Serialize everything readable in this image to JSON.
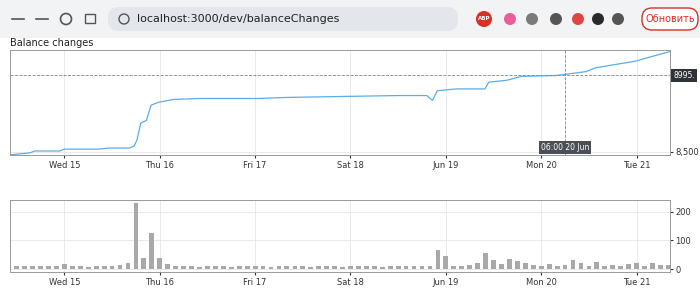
{
  "browser": {
    "url": "localhost:3000/dev/balanceChanges",
    "button": "Обновить",
    "extension_text": "ABP"
  },
  "chart_data": [
    {
      "type": "line",
      "title": "Balance changes",
      "x": [
        14.43,
        14.64,
        14.69,
        14.95,
        15.0,
        15.36,
        15.47,
        15.68,
        15.73,
        15.76,
        15.8,
        15.86,
        15.91,
        15.99,
        16.15,
        16.41,
        17.03,
        17.34,
        18.49,
        18.8,
        18.86,
        18.91,
        19.11,
        19.41,
        19.45,
        19.64,
        19.79,
        20.16,
        20.47,
        20.57,
        20.99,
        21.09,
        21.35
      ],
      "values": [
        8481,
        8494,
        8506,
        8506,
        8518,
        8518,
        8525,
        8525,
        8537,
        8574,
        8686,
        8704,
        8803,
        8822,
        8840,
        8846,
        8846,
        8853,
        8865,
        8865,
        8834,
        8896,
        8908,
        8908,
        8952,
        8964,
        8989,
        8995,
        9020,
        9045,
        9088,
        9106,
        9150
      ],
      "color": "#5aaee8",
      "xlim": [
        14.43,
        21.35
      ],
      "xticks": [
        {
          "value": 15,
          "label": "Wed 15"
        },
        {
          "value": 16,
          "label": "Thu 16"
        },
        {
          "value": 17,
          "label": "Fri 17"
        },
        {
          "value": 18,
          "label": "Sat 18"
        },
        {
          "value": 19,
          "label": "Jun 19"
        },
        {
          "value": 20,
          "label": "Mon 20"
        },
        {
          "value": 21,
          "label": "Tue 21"
        }
      ],
      "ylim": [
        8480,
        9160
      ],
      "yticks": [
        {
          "value": 8500,
          "label": "8,500"
        }
      ],
      "grid": true,
      "annotations": [
        {
          "text": "06:00 20 Jun",
          "x": 20.25
        },
        {
          "text": "8995.",
          "y": 8995
        }
      ]
    },
    {
      "type": "bar",
      "x": [
        14.5,
        14.583,
        14.667,
        14.75,
        14.833,
        14.917,
        15.0,
        15.083,
        15.167,
        15.25,
        15.333,
        15.417,
        15.5,
        15.583,
        15.667,
        15.75,
        15.833,
        15.917,
        16.0,
        16.083,
        16.167,
        16.25,
        16.333,
        16.417,
        16.5,
        16.583,
        16.667,
        16.75,
        16.833,
        16.917,
        17.0,
        17.083,
        17.167,
        17.25,
        17.333,
        17.417,
        17.5,
        17.583,
        17.667,
        17.75,
        17.833,
        17.917,
        18.0,
        18.083,
        18.167,
        18.25,
        18.333,
        18.417,
        18.5,
        18.583,
        18.667,
        18.75,
        18.833,
        18.917,
        19.0,
        19.083,
        19.167,
        19.25,
        19.333,
        19.417,
        19.5,
        19.583,
        19.667,
        19.75,
        19.833,
        19.917,
        20.0,
        20.083,
        20.167,
        20.25,
        20.333,
        20.417,
        20.5,
        20.583,
        20.667,
        20.75,
        20.833,
        20.917,
        21.0,
        21.083,
        21.167,
        21.25,
        21.333
      ],
      "values": [
        10,
        12,
        11,
        12,
        10,
        11,
        18,
        10,
        11,
        9,
        12,
        10,
        11,
        14,
        20,
        230,
        40,
        125,
        40,
        18,
        12,
        10,
        11,
        9,
        10,
        10,
        11,
        9,
        10,
        12,
        10,
        11,
        9,
        10,
        12,
        10,
        11,
        9,
        10,
        10,
        11,
        9,
        10,
        11,
        12,
        10,
        9,
        10,
        11,
        10,
        12,
        10,
        10,
        65,
        45,
        12,
        11,
        15,
        20,
        55,
        30,
        18,
        35,
        28,
        20,
        15,
        12,
        18,
        11,
        14,
        30,
        22,
        12,
        25,
        10,
        14,
        12,
        18,
        22,
        12,
        20,
        14,
        15
      ],
      "color": "#a8a8a8",
      "xlim": [
        14.43,
        21.35
      ],
      "xticks": [
        {
          "value": 15,
          "label": "Wed 15"
        },
        {
          "value": 16,
          "label": "Thu 16"
        },
        {
          "value": 17,
          "label": "Fri 17"
        },
        {
          "value": 18,
          "label": "Sat 18"
        },
        {
          "value": 19,
          "label": "Jun 19"
        },
        {
          "value": 20,
          "label": "Mon 20"
        },
        {
          "value": 21,
          "label": "Tue 21"
        }
      ],
      "ylim": [
        -10,
        240
      ],
      "yticks": [
        0,
        100,
        200
      ],
      "grid": true
    }
  ]
}
